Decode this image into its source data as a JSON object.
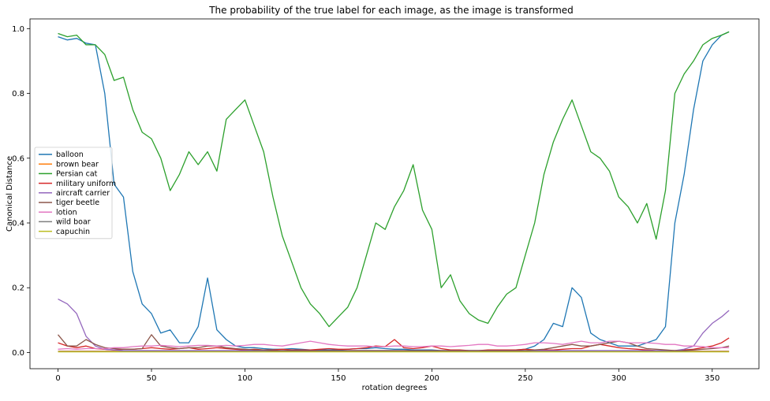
{
  "chart_data": {
    "type": "line",
    "title": "The probability of the true label for each image, as the image is transformed",
    "xlabel": "rotation degrees",
    "ylabel": "Canonical Distance",
    "xlim": [
      -15,
      375
    ],
    "ylim": [
      -0.05,
      1.03
    ],
    "xticks": [
      0,
      50,
      100,
      150,
      200,
      250,
      300,
      350
    ],
    "yticks": [
      0.0,
      0.2,
      0.4,
      0.6,
      0.8,
      1.0
    ],
    "ytick_labels": [
      "0.0",
      "0.2",
      "0.4",
      "0.6",
      "0.8",
      "1.0"
    ],
    "grid": false,
    "legend_position": "center-left",
    "x": [
      0,
      5,
      10,
      15,
      20,
      25,
      30,
      35,
      40,
      45,
      50,
      55,
      60,
      65,
      70,
      75,
      80,
      85,
      90,
      95,
      100,
      105,
      110,
      115,
      120,
      125,
      130,
      135,
      140,
      145,
      150,
      155,
      160,
      165,
      170,
      175,
      180,
      185,
      190,
      195,
      200,
      205,
      210,
      215,
      220,
      225,
      230,
      235,
      240,
      245,
      250,
      255,
      260,
      265,
      270,
      275,
      280,
      285,
      290,
      295,
      300,
      305,
      310,
      315,
      320,
      325,
      330,
      335,
      340,
      345,
      350,
      355,
      359
    ],
    "series": [
      {
        "name": "balloon",
        "color": "#1f77b4",
        "values": [
          0.975,
          0.965,
          0.97,
          0.955,
          0.95,
          0.8,
          0.52,
          0.48,
          0.25,
          0.15,
          0.12,
          0.06,
          0.07,
          0.03,
          0.03,
          0.08,
          0.23,
          0.07,
          0.04,
          0.02,
          0.015,
          0.015,
          0.012,
          0.01,
          0.01,
          0.012,
          0.01,
          0.008,
          0.008,
          0.008,
          0.008,
          0.01,
          0.012,
          0.012,
          0.015,
          0.012,
          0.01,
          0.01,
          0.008,
          0.008,
          0.008,
          0.006,
          0.006,
          0.006,
          0.006,
          0.006,
          0.006,
          0.006,
          0.008,
          0.008,
          0.01,
          0.02,
          0.04,
          0.09,
          0.08,
          0.2,
          0.17,
          0.06,
          0.04,
          0.03,
          0.02,
          0.02,
          0.02,
          0.03,
          0.04,
          0.08,
          0.4,
          0.55,
          0.75,
          0.9,
          0.95,
          0.98,
          0.99
        ]
      },
      {
        "name": "brown bear",
        "color": "#ff7f0e",
        "values": [
          0.004,
          0.004,
          0.004,
          0.004,
          0.004,
          0.004,
          0.004,
          0.004,
          0.004,
          0.004,
          0.004,
          0.004,
          0.004,
          0.004,
          0.004,
          0.004,
          0.004,
          0.004,
          0.004,
          0.004,
          0.004,
          0.004,
          0.004,
          0.004,
          0.004,
          0.004,
          0.004,
          0.004,
          0.004,
          0.004,
          0.004,
          0.004,
          0.004,
          0.004,
          0.004,
          0.004,
          0.004,
          0.004,
          0.004,
          0.004,
          0.004,
          0.004,
          0.004,
          0.004,
          0.004,
          0.004,
          0.004,
          0.004,
          0.004,
          0.004,
          0.004,
          0.004,
          0.004,
          0.004,
          0.004,
          0.004,
          0.004,
          0.004,
          0.004,
          0.004,
          0.004,
          0.004,
          0.004,
          0.004,
          0.004,
          0.004,
          0.004,
          0.004,
          0.004,
          0.004,
          0.004,
          0.004,
          0.004
        ]
      },
      {
        "name": "Persian cat",
        "color": "#2ca02c",
        "values": [
          0.985,
          0.975,
          0.98,
          0.95,
          0.95,
          0.92,
          0.84,
          0.85,
          0.75,
          0.68,
          0.66,
          0.6,
          0.5,
          0.55,
          0.62,
          0.58,
          0.62,
          0.56,
          0.72,
          0.75,
          0.78,
          0.7,
          0.62,
          0.48,
          0.36,
          0.28,
          0.2,
          0.15,
          0.12,
          0.08,
          0.11,
          0.14,
          0.2,
          0.3,
          0.4,
          0.38,
          0.45,
          0.5,
          0.58,
          0.44,
          0.38,
          0.2,
          0.24,
          0.16,
          0.12,
          0.1,
          0.09,
          0.14,
          0.18,
          0.2,
          0.3,
          0.4,
          0.55,
          0.65,
          0.72,
          0.78,
          0.7,
          0.62,
          0.6,
          0.56,
          0.48,
          0.45,
          0.4,
          0.46,
          0.35,
          0.5,
          0.8,
          0.86,
          0.9,
          0.95,
          0.97,
          0.98,
          0.99
        ]
      },
      {
        "name": "military uniform",
        "color": "#d62728",
        "values": [
          0.03,
          0.02,
          0.015,
          0.02,
          0.012,
          0.01,
          0.008,
          0.01,
          0.01,
          0.012,
          0.015,
          0.012,
          0.01,
          0.012,
          0.015,
          0.01,
          0.012,
          0.015,
          0.012,
          0.01,
          0.008,
          0.01,
          0.008,
          0.008,
          0.01,
          0.008,
          0.008,
          0.008,
          0.01,
          0.012,
          0.01,
          0.01,
          0.012,
          0.015,
          0.02,
          0.018,
          0.04,
          0.015,
          0.012,
          0.015,
          0.02,
          0.012,
          0.008,
          0.008,
          0.006,
          0.006,
          0.008,
          0.008,
          0.008,
          0.008,
          0.01,
          0.008,
          0.008,
          0.008,
          0.01,
          0.012,
          0.012,
          0.02,
          0.025,
          0.02,
          0.015,
          0.012,
          0.01,
          0.008,
          0.006,
          0.006,
          0.006,
          0.008,
          0.01,
          0.015,
          0.02,
          0.03,
          0.045
        ]
      },
      {
        "name": "aircraft carrier",
        "color": "#9467bd",
        "values": [
          0.165,
          0.15,
          0.12,
          0.05,
          0.02,
          0.01,
          0.008,
          0.006,
          0.006,
          0.006,
          0.006,
          0.006,
          0.006,
          0.006,
          0.006,
          0.006,
          0.006,
          0.006,
          0.006,
          0.006,
          0.006,
          0.006,
          0.006,
          0.006,
          0.006,
          0.006,
          0.006,
          0.006,
          0.006,
          0.006,
          0.006,
          0.006,
          0.006,
          0.006,
          0.006,
          0.006,
          0.006,
          0.006,
          0.006,
          0.006,
          0.006,
          0.006,
          0.006,
          0.006,
          0.006,
          0.006,
          0.006,
          0.006,
          0.006,
          0.006,
          0.006,
          0.006,
          0.006,
          0.006,
          0.006,
          0.006,
          0.006,
          0.006,
          0.006,
          0.006,
          0.006,
          0.006,
          0.006,
          0.006,
          0.006,
          0.006,
          0.006,
          0.01,
          0.02,
          0.06,
          0.09,
          0.11,
          0.13
        ]
      },
      {
        "name": "tiger beetle",
        "color": "#8c564b",
        "values": [
          0.055,
          0.02,
          0.02,
          0.04,
          0.025,
          0.015,
          0.012,
          0.01,
          0.01,
          0.012,
          0.055,
          0.02,
          0.015,
          0.012,
          0.015,
          0.015,
          0.02,
          0.02,
          0.015,
          0.012,
          0.01,
          0.008,
          0.008,
          0.006,
          0.006,
          0.006,
          0.006,
          0.006,
          0.006,
          0.006,
          0.006,
          0.006,
          0.006,
          0.006,
          0.006,
          0.006,
          0.006,
          0.006,
          0.006,
          0.006,
          0.006,
          0.006,
          0.006,
          0.006,
          0.006,
          0.006,
          0.006,
          0.006,
          0.006,
          0.006,
          0.006,
          0.008,
          0.01,
          0.015,
          0.02,
          0.025,
          0.02,
          0.02,
          0.025,
          0.03,
          0.035,
          0.03,
          0.02,
          0.012,
          0.01,
          0.008,
          0.006,
          0.006,
          0.008,
          0.01,
          0.012,
          0.015,
          0.02
        ]
      },
      {
        "name": "lotion",
        "color": "#e377c2",
        "values": [
          0.01,
          0.012,
          0.01,
          0.012,
          0.012,
          0.012,
          0.015,
          0.015,
          0.018,
          0.02,
          0.02,
          0.022,
          0.02,
          0.018,
          0.02,
          0.022,
          0.022,
          0.02,
          0.022,
          0.02,
          0.022,
          0.025,
          0.025,
          0.022,
          0.02,
          0.025,
          0.03,
          0.035,
          0.03,
          0.025,
          0.022,
          0.02,
          0.02,
          0.02,
          0.018,
          0.018,
          0.02,
          0.02,
          0.018,
          0.018,
          0.02,
          0.02,
          0.018,
          0.02,
          0.022,
          0.025,
          0.025,
          0.02,
          0.02,
          0.022,
          0.025,
          0.03,
          0.03,
          0.028,
          0.025,
          0.03,
          0.035,
          0.03,
          0.03,
          0.035,
          0.035,
          0.03,
          0.03,
          0.03,
          0.028,
          0.025,
          0.025,
          0.02,
          0.02,
          0.018,
          0.015,
          0.015,
          0.015
        ]
      },
      {
        "name": "wild boar",
        "color": "#7f7f7f",
        "values": [
          0.003,
          0.003,
          0.003,
          0.003,
          0.003,
          0.003,
          0.003,
          0.003,
          0.003,
          0.003,
          0.003,
          0.003,
          0.003,
          0.003,
          0.003,
          0.003,
          0.003,
          0.003,
          0.003,
          0.003,
          0.003,
          0.003,
          0.003,
          0.003,
          0.003,
          0.003,
          0.003,
          0.003,
          0.003,
          0.003,
          0.003,
          0.003,
          0.003,
          0.003,
          0.003,
          0.003,
          0.003,
          0.003,
          0.003,
          0.003,
          0.003,
          0.003,
          0.003,
          0.003,
          0.003,
          0.003,
          0.003,
          0.003,
          0.003,
          0.003,
          0.003,
          0.003,
          0.003,
          0.003,
          0.003,
          0.003,
          0.003,
          0.003,
          0.003,
          0.003,
          0.003,
          0.003,
          0.003,
          0.003,
          0.003,
          0.003,
          0.003,
          0.003,
          0.003,
          0.003,
          0.003,
          0.003,
          0.003
        ]
      },
      {
        "name": "capuchin",
        "color": "#bcbd22",
        "values": [
          0.002,
          0.002,
          0.002,
          0.002,
          0.002,
          0.002,
          0.002,
          0.002,
          0.002,
          0.002,
          0.002,
          0.002,
          0.002,
          0.002,
          0.002,
          0.002,
          0.002,
          0.002,
          0.002,
          0.002,
          0.002,
          0.002,
          0.002,
          0.002,
          0.002,
          0.002,
          0.002,
          0.002,
          0.002,
          0.002,
          0.002,
          0.002,
          0.002,
          0.002,
          0.002,
          0.002,
          0.002,
          0.002,
          0.002,
          0.002,
          0.002,
          0.002,
          0.002,
          0.002,
          0.002,
          0.002,
          0.002,
          0.002,
          0.002,
          0.002,
          0.002,
          0.002,
          0.002,
          0.002,
          0.002,
          0.002,
          0.002,
          0.002,
          0.002,
          0.002,
          0.002,
          0.002,
          0.002,
          0.002,
          0.002,
          0.002,
          0.002,
          0.002,
          0.002,
          0.002,
          0.002,
          0.002,
          0.002
        ]
      }
    ]
  }
}
